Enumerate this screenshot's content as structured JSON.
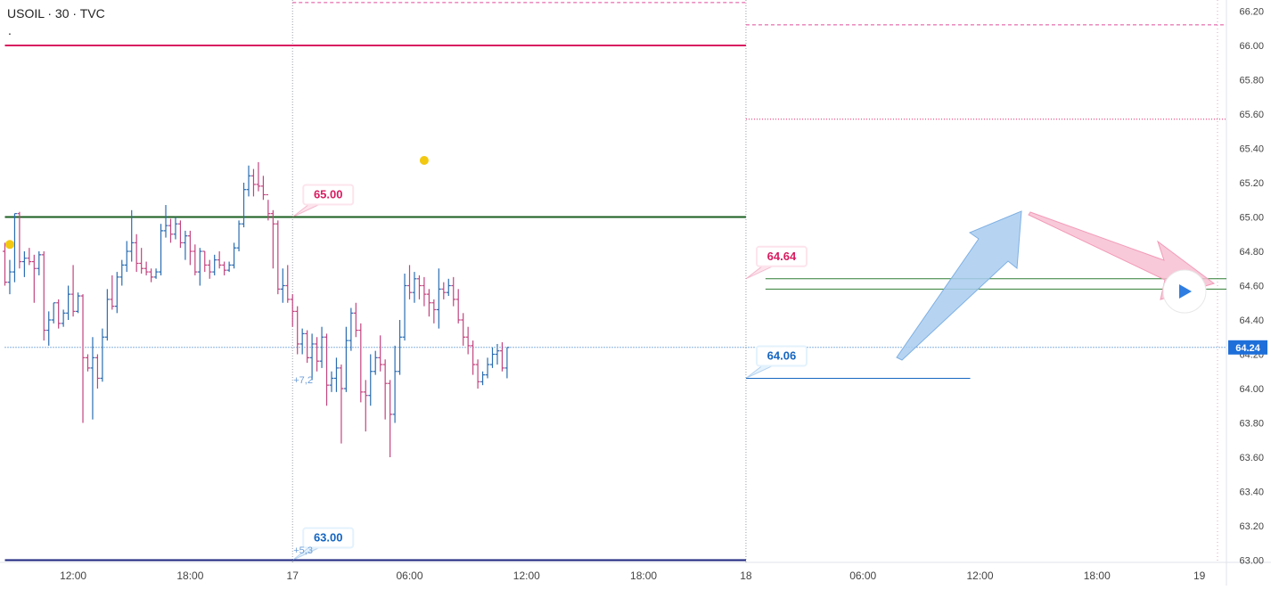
{
  "header": {
    "symbol_line": "USOIL · 30 · TVC",
    "dot_line": "."
  },
  "chart_data": {
    "type": "ohlc",
    "symbol": "USOIL",
    "interval": "30",
    "source": "TVC",
    "ylim": [
      63.0,
      66.25
    ],
    "yticks": [
      "66.20",
      "66.00",
      "65.80",
      "65.60",
      "65.40",
      "65.20",
      "65.00",
      "64.80",
      "64.60",
      "64.40",
      "64.20",
      "64.00",
      "63.80",
      "63.60",
      "63.40",
      "63.20",
      "63.00"
    ],
    "xticks": [
      {
        "label": "12:00",
        "slot": 14
      },
      {
        "label": "18:00",
        "slot": 38
      },
      {
        "label": "17",
        "slot": 59
      },
      {
        "label": "06:00",
        "slot": 83
      },
      {
        "label": "12:00",
        "slot": 107
      },
      {
        "label": "18:00",
        "slot": 131
      },
      {
        "label": "18",
        "slot": 152
      },
      {
        "label": "06:00",
        "slot": 176
      },
      {
        "label": "12:00",
        "slot": 200
      },
      {
        "label": "18:00",
        "slot": 224
      },
      {
        "label": "19",
        "slot": 245
      }
    ],
    "current_price": "64.24",
    "bars": [
      [
        64.8,
        64.85,
        64.6,
        64.62
      ],
      [
        64.62,
        64.75,
        64.55,
        64.68
      ],
      [
        64.68,
        65.02,
        64.62,
        65.02
      ],
      [
        65.02,
        65.03,
        64.7,
        64.74
      ],
      [
        64.74,
        64.8,
        64.65,
        64.76
      ],
      [
        64.76,
        64.82,
        64.72,
        64.74
      ],
      [
        64.74,
        64.78,
        64.5,
        64.7
      ],
      [
        64.7,
        64.8,
        64.66,
        64.78
      ],
      [
        64.78,
        64.8,
        64.28,
        64.34
      ],
      [
        64.34,
        64.45,
        64.25,
        64.4
      ],
      [
        64.4,
        64.5,
        64.38,
        64.5
      ],
      [
        64.5,
        64.52,
        64.35,
        64.38
      ],
      [
        64.38,
        64.46,
        64.36,
        64.44
      ],
      [
        64.44,
        64.6,
        64.4,
        64.55
      ],
      [
        64.55,
        64.72,
        64.42,
        64.45
      ],
      [
        64.45,
        64.56,
        64.44,
        64.54
      ],
      [
        64.54,
        64.55,
        63.8,
        64.18
      ],
      [
        64.18,
        64.2,
        64.1,
        64.12
      ],
      [
        64.12,
        64.3,
        63.82,
        64.18
      ],
      [
        64.18,
        64.2,
        64.0,
        64.06
      ],
      [
        64.06,
        64.35,
        64.04,
        64.3
      ],
      [
        64.3,
        64.58,
        64.28,
        64.52
      ],
      [
        64.52,
        64.66,
        64.46,
        64.48
      ],
      [
        64.48,
        64.68,
        64.44,
        64.65
      ],
      [
        64.65,
        64.75,
        64.6,
        64.72
      ],
      [
        64.72,
        64.86,
        64.68,
        64.8
      ],
      [
        64.8,
        65.04,
        64.74,
        64.85
      ],
      [
        64.85,
        64.9,
        64.68,
        64.73
      ],
      [
        64.73,
        64.82,
        64.67,
        64.7
      ],
      [
        64.7,
        64.74,
        64.66,
        64.68
      ],
      [
        64.68,
        64.7,
        64.62,
        64.65
      ],
      [
        64.65,
        64.7,
        64.64,
        64.68
      ],
      [
        64.68,
        64.96,
        64.66,
        64.92
      ],
      [
        64.92,
        65.07,
        64.88,
        64.95
      ],
      [
        64.95,
        64.99,
        64.85,
        64.9
      ],
      [
        64.9,
        65.0,
        64.87,
        64.96
      ],
      [
        64.96,
        64.98,
        64.82,
        64.85
      ],
      [
        64.85,
        64.92,
        64.75,
        64.89
      ],
      [
        64.89,
        64.92,
        64.72,
        64.8
      ],
      [
        64.8,
        64.84,
        64.66,
        64.68
      ],
      [
        64.68,
        64.82,
        64.6,
        64.8
      ],
      [
        64.8,
        64.8,
        64.68,
        64.72
      ],
      [
        64.72,
        64.75,
        64.64,
        64.68
      ],
      [
        64.68,
        64.78,
        64.66,
        64.75
      ],
      [
        64.75,
        64.8,
        64.7,
        64.72
      ],
      [
        64.72,
        64.74,
        64.66,
        64.69
      ],
      [
        64.69,
        64.74,
        64.68,
        64.72
      ],
      [
        64.72,
        64.85,
        64.7,
        64.82
      ],
      [
        64.82,
        64.98,
        64.8,
        64.96
      ],
      [
        64.96,
        65.2,
        64.94,
        65.16
      ],
      [
        65.16,
        65.3,
        65.12,
        65.24
      ],
      [
        65.24,
        65.28,
        65.12,
        65.19
      ],
      [
        65.19,
        65.32,
        65.15,
        65.18
      ],
      [
        65.18,
        65.24,
        65.1,
        65.13
      ],
      [
        65.13,
        65.1,
        64.98,
        65.02
      ],
      [
        65.02,
        65.04,
        64.7,
        64.96
      ],
      [
        64.96,
        64.98,
        64.55,
        64.58
      ],
      [
        64.58,
        64.7,
        64.5,
        64.6
      ],
      [
        64.6,
        64.72,
        64.5,
        64.52
      ],
      [
        64.52,
        64.55,
        64.36,
        64.45
      ],
      [
        64.45,
        64.48,
        64.2,
        64.26
      ],
      [
        64.26,
        64.35,
        64.2,
        64.32
      ],
      [
        64.32,
        64.34,
        64.15,
        64.18
      ],
      [
        64.18,
        64.32,
        64.05,
        64.26
      ],
      [
        64.26,
        64.3,
        64.1,
        64.16
      ],
      [
        64.16,
        64.36,
        64.12,
        64.3
      ],
      [
        64.3,
        64.32,
        63.9,
        64.02
      ],
      [
        64.02,
        64.1,
        63.98,
        64.06
      ],
      [
        64.06,
        64.18,
        63.98,
        64.12
      ],
      [
        64.12,
        64.14,
        63.68,
        64.0
      ],
      [
        64.0,
        64.36,
        63.98,
        64.28
      ],
      [
        64.28,
        64.47,
        64.22,
        64.44
      ],
      [
        64.44,
        64.5,
        64.3,
        64.34
      ],
      [
        64.34,
        64.38,
        63.92,
        63.98
      ],
      [
        63.98,
        64.05,
        63.75,
        63.96
      ],
      [
        63.96,
        64.2,
        63.9,
        64.1
      ],
      [
        64.1,
        64.22,
        64.08,
        64.18
      ],
      [
        64.18,
        64.31,
        64.1,
        64.14
      ],
      [
        64.14,
        64.17,
        63.82,
        64.03
      ],
      [
        64.03,
        64.05,
        63.6,
        63.85
      ],
      [
        63.85,
        64.25,
        63.8,
        64.1
      ],
      [
        64.1,
        64.4,
        64.08,
        64.3
      ],
      [
        64.3,
        64.67,
        64.28,
        64.6
      ],
      [
        64.6,
        64.72,
        64.52,
        64.56
      ],
      [
        64.56,
        64.68,
        64.5,
        64.64
      ],
      [
        64.64,
        64.66,
        64.52,
        64.6
      ],
      [
        64.6,
        64.65,
        64.48,
        64.55
      ],
      [
        64.55,
        64.58,
        64.42,
        64.5
      ],
      [
        64.5,
        64.52,
        64.38,
        64.46
      ],
      [
        64.46,
        64.7,
        64.35,
        64.58
      ],
      [
        64.58,
        64.62,
        64.52,
        64.56
      ],
      [
        64.56,
        64.64,
        64.54,
        64.6
      ],
      [
        64.6,
        64.65,
        64.48,
        64.52
      ],
      [
        64.52,
        64.58,
        64.38,
        64.4
      ],
      [
        64.4,
        64.44,
        64.25,
        64.3
      ],
      [
        64.3,
        64.36,
        64.2,
        64.25
      ],
      [
        64.25,
        64.28,
        64.08,
        64.14
      ],
      [
        64.14,
        64.17,
        64.0,
        64.04
      ],
      [
        64.04,
        64.1,
        64.02,
        64.08
      ],
      [
        64.08,
        64.18,
        64.06,
        64.14
      ],
      [
        64.14,
        64.24,
        64.12,
        64.2
      ],
      [
        64.2,
        64.26,
        64.14,
        64.22
      ],
      [
        64.22,
        64.27,
        64.1,
        64.12
      ],
      [
        64.12,
        64.24,
        64.06,
        64.24
      ]
    ],
    "levels": [
      {
        "name": "upper-dashed-high",
        "price": 66.25,
        "color": "#e04b9a",
        "style": "dashed",
        "from_slot": 59,
        "to_slot": 152
      },
      {
        "name": "upper-dashed-right",
        "price": 66.12,
        "color": "#e04b9a",
        "style": "dashed",
        "from_slot": 152,
        "to_slot": 252
      },
      {
        "name": "resistance-66",
        "price": 66.0,
        "color": "#d81b60",
        "style": "solid",
        "from_slot": 0,
        "to_slot": 152
      },
      {
        "name": "dotted-65-57",
        "price": 65.57,
        "color": "#e91e63",
        "style": "dotted",
        "from_slot": 152,
        "to_slot": 252
      },
      {
        "name": "support-65",
        "price": 65.0,
        "color": "#1b5e20",
        "style": "solid",
        "from_slot": 0,
        "to_slot": 152
      },
      {
        "name": "zone-top",
        "price": 64.64,
        "color": "#2e7d32",
        "style": "thin",
        "from_slot": 156,
        "to_slot": 252
      },
      {
        "name": "zone-bottom",
        "price": 64.58,
        "color": "#2e7d32",
        "style": "thin",
        "from_slot": 156,
        "to_slot": 252
      },
      {
        "name": "low-64-06",
        "price": 64.06,
        "color": "#1565c0",
        "style": "thin",
        "from_slot": 152,
        "to_slot": 198
      },
      {
        "name": "support-63",
        "price": 63.0,
        "color": "#1a237e",
        "style": "solid",
        "from_slot": 0,
        "to_slot": 152
      },
      {
        "name": "current-price-line",
        "price": 64.24,
        "color": "#1565c0",
        "style": "dotted",
        "from_slot": 0,
        "to_slot": 252
      }
    ],
    "price_labels": [
      {
        "text": "65.00",
        "color": "#d81b60",
        "bg": "#fde4ec",
        "price": 65.0,
        "slot": 59
      },
      {
        "text": "64.64",
        "color": "#d81b60",
        "bg": "#fde4ec",
        "price": 64.64,
        "slot": 152
      },
      {
        "text": "64.06",
        "color": "#1565c0",
        "bg": "#e3f2fd",
        "price": 64.06,
        "slot": 152
      },
      {
        "text": "63.00",
        "color": "#1565c0",
        "bg": "#e3f2fd",
        "price": 63.0,
        "slot": 59
      }
    ],
    "small_labels": [
      {
        "text": "+7,2",
        "price": 64.03,
        "slot": 59
      },
      {
        "text": "+5,3",
        "price": 63.04,
        "slot": 59
      }
    ],
    "markers": [
      {
        "name": "yellow-dot-left",
        "price": 64.84,
        "slot": 1,
        "color": "#f2c811"
      },
      {
        "name": "yellow-dot-peak",
        "price": 65.33,
        "slot": 86,
        "color": "#f2c811"
      }
    ],
    "session_lines": [
      59,
      152
    ]
  },
  "colors": {
    "bar_up": "#2a6db0",
    "bar_down": "#c2447f",
    "axis_text": "#444444",
    "price_badge_bg": "#1e6fd9",
    "arrow_blue": "#a9cdf0",
    "arrow_pink": "#f7bfd2"
  },
  "icons": {
    "replay": "play-icon"
  }
}
